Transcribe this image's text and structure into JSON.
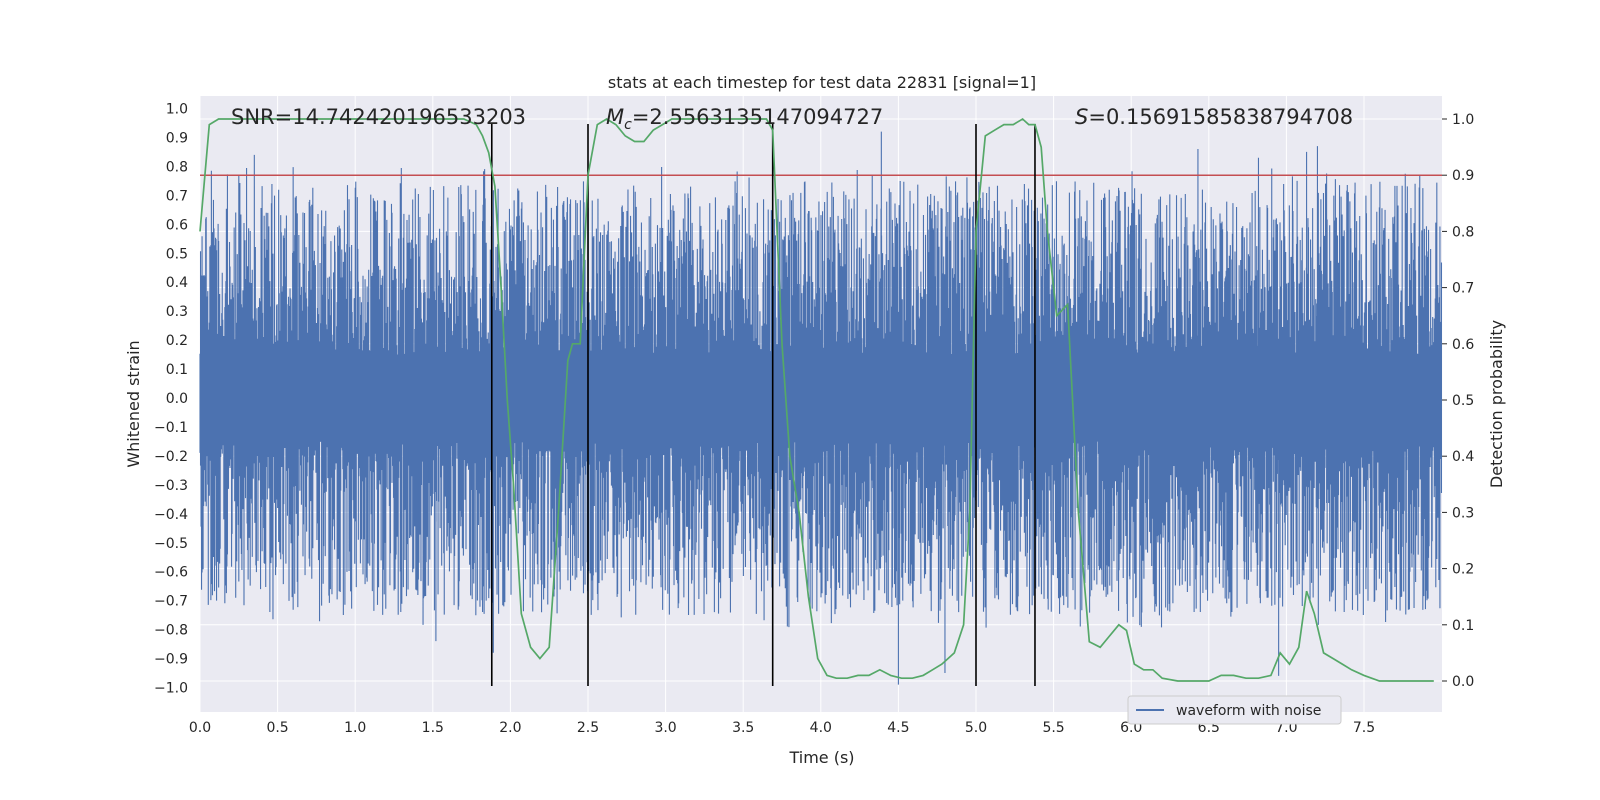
{
  "chart_data": {
    "type": "line",
    "title": "stats at each timestep for test data 22831 [signal=1]",
    "xlabel": "Time (s)",
    "ylabel": "Whitened strain",
    "y2label": "Detection probability",
    "xlim": [
      0.0,
      8.0
    ],
    "ylim": [
      -1.09,
      1.04
    ],
    "y2lim": [
      -0.047,
      1.087
    ],
    "x_ticks": [
      "0.0",
      "0.5",
      "1.0",
      "1.5",
      "2.0",
      "2.5",
      "3.0",
      "3.5",
      "4.0",
      "4.5",
      "5.0",
      "5.5",
      "6.0",
      "6.5",
      "7.0",
      "7.5"
    ],
    "x_tick_values": [
      0.0,
      0.5,
      1.0,
      1.5,
      2.0,
      2.5,
      3.0,
      3.5,
      4.0,
      4.5,
      5.0,
      5.5,
      6.0,
      6.5,
      7.0,
      7.5
    ],
    "y_ticks": [
      "1.0",
      "0.9",
      "0.8",
      "0.7",
      "0.6",
      "0.5",
      "0.4",
      "0.3",
      "0.2",
      "0.1",
      "0.0",
      "−0.1",
      "−0.2",
      "−0.3",
      "−0.4",
      "−0.5",
      "−0.6",
      "−0.7",
      "−0.8",
      "−0.9",
      "−1.0"
    ],
    "y_tick_values": [
      1.0,
      0.9,
      0.8,
      0.7,
      0.6,
      0.5,
      0.4,
      0.3,
      0.2,
      0.1,
      0.0,
      -0.1,
      -0.2,
      -0.3,
      -0.4,
      -0.5,
      -0.6,
      -0.7,
      -0.8,
      -0.9,
      -1.0
    ],
    "y2_ticks": [
      "1.0",
      "0.9",
      "0.8",
      "0.7",
      "0.6",
      "0.5",
      "0.4",
      "0.3",
      "0.2",
      "0.1",
      "0.0"
    ],
    "y2_tick_values": [
      1.0,
      0.9,
      0.8,
      0.7,
      0.6,
      0.5,
      0.4,
      0.3,
      0.2,
      0.1,
      0.0
    ],
    "grid": true,
    "legend": {
      "position": "bottom-right",
      "entries": [
        "waveform with noise"
      ]
    },
    "annotations": {
      "snr": "SNR=14.742420196533203",
      "mc_symbol": "M",
      "mc_sub": "c",
      "mc_value": "=2.5563135147094727",
      "s_symbol": "S",
      "s_value": "=0.15691585838794708"
    },
    "threshold": 0.9,
    "vertical_lines_x": [
      1.88,
      2.5,
      3.69,
      5.0,
      5.38
    ],
    "series": [
      {
        "name": "waveform with noise",
        "axis": "left",
        "color": "#4c72b0",
        "description_range": [
          -0.6,
          0.6
        ],
        "peaks": [
          {
            "x": 0.35,
            "y": 0.84
          },
          {
            "x": 1.52,
            "y": -0.84
          },
          {
            "x": 3.69,
            "y": 0.87
          },
          {
            "x": 4.39,
            "y": 0.92
          },
          {
            "x": 4.5,
            "y": -0.99
          },
          {
            "x": 4.8,
            "y": -0.95
          },
          {
            "x": 6.43,
            "y": 0.86
          },
          {
            "x": 6.82,
            "y": 0.83
          },
          {
            "x": 7.13,
            "y": 0.85
          },
          {
            "x": 7.2,
            "y": 0.87
          },
          {
            "x": 6.95,
            "y": -0.96
          },
          {
            "x": 1.89,
            "y": -0.88
          }
        ]
      },
      {
        "name": "",
        "axis": "right",
        "color": "#55a868",
        "x": [
          0.0,
          0.06,
          0.12,
          0.2,
          0.3,
          0.5,
          0.8,
          1.0,
          1.2,
          1.4,
          1.6,
          1.7,
          1.78,
          1.82,
          1.86,
          1.9,
          1.94,
          1.98,
          2.02,
          2.07,
          2.13,
          2.19,
          2.25,
          2.31,
          2.37,
          2.4,
          2.45,
          2.5,
          2.56,
          2.62,
          2.68,
          2.74,
          2.8,
          2.86,
          2.92,
          2.98,
          3.04,
          3.1,
          3.2,
          3.4,
          3.5,
          3.6,
          3.65,
          3.69,
          3.75,
          3.8,
          3.86,
          3.92,
          3.98,
          4.04,
          4.1,
          4.17,
          4.24,
          4.31,
          4.38,
          4.45,
          4.52,
          4.59,
          4.66,
          4.72,
          4.78,
          4.82,
          4.86,
          4.92,
          4.96,
          5.0,
          5.06,
          5.12,
          5.18,
          5.24,
          5.3,
          5.34,
          5.38,
          5.42,
          5.46,
          5.52,
          5.59,
          5.66,
          5.73,
          5.8,
          5.86,
          5.92,
          5.97,
          6.02,
          6.08,
          6.14,
          6.2,
          6.3,
          6.4,
          6.5,
          6.58,
          6.66,
          6.74,
          6.82,
          6.9,
          6.96,
          7.02,
          7.08,
          7.13,
          7.18,
          7.24,
          7.3,
          7.36,
          7.42,
          7.5,
          7.6,
          7.8,
          7.95
        ],
        "y": [
          0.8,
          0.99,
          1.0,
          1.0,
          1.0,
          1.0,
          1.0,
          1.0,
          1.0,
          1.0,
          1.0,
          1.0,
          0.99,
          0.97,
          0.94,
          0.88,
          0.7,
          0.5,
          0.35,
          0.12,
          0.06,
          0.04,
          0.06,
          0.3,
          0.57,
          0.6,
          0.6,
          0.9,
          0.99,
          1.0,
          0.99,
          0.97,
          0.96,
          0.96,
          0.98,
          0.99,
          1.0,
          1.0,
          1.0,
          1.0,
          1.0,
          1.0,
          1.0,
          0.98,
          0.6,
          0.4,
          0.3,
          0.15,
          0.04,
          0.01,
          0.005,
          0.005,
          0.01,
          0.01,
          0.02,
          0.01,
          0.005,
          0.005,
          0.01,
          0.02,
          0.03,
          0.04,
          0.05,
          0.1,
          0.3,
          0.8,
          0.97,
          0.98,
          0.99,
          0.99,
          1.0,
          0.99,
          0.99,
          0.95,
          0.8,
          0.65,
          0.67,
          0.3,
          0.07,
          0.06,
          0.08,
          0.1,
          0.09,
          0.03,
          0.02,
          0.02,
          0.005,
          0.0,
          0.0,
          0.0,
          0.01,
          0.01,
          0.005,
          0.005,
          0.01,
          0.05,
          0.03,
          0.06,
          0.16,
          0.12,
          0.05,
          0.04,
          0.03,
          0.02,
          0.01,
          0.0,
          0.0,
          0.0
        ]
      }
    ]
  }
}
